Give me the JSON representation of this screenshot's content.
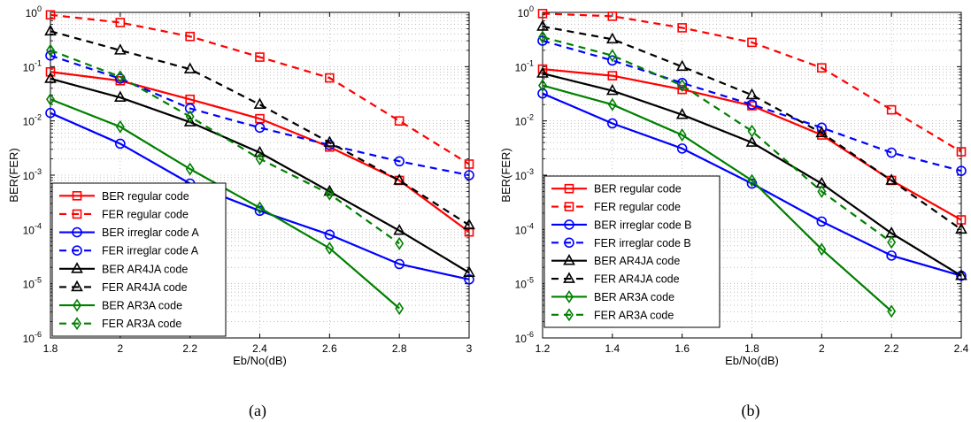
{
  "chart_data": [
    {
      "type": "line",
      "panel_label": "(a)",
      "xlabel": "Eb/No(dB)",
      "ylabel": "BER(FER)",
      "log_y": true,
      "xlim": [
        1.8,
        3.0
      ],
      "ylim": [
        1e-06,
        1
      ],
      "x_ticks": [
        1.8,
        2.0,
        2.2,
        2.4,
        2.6,
        2.8,
        3.0
      ],
      "x_tick_labels": [
        "1.8",
        "2",
        "2.2",
        "2.4",
        "2.6",
        "2.8",
        "3"
      ],
      "y_ticks": [
        {
          "exp": "-6",
          "value": 1e-06
        },
        {
          "exp": "-5",
          "value": 1e-05
        },
        {
          "exp": "-4",
          "value": 0.0001
        },
        {
          "exp": "-3",
          "value": 0.001
        },
        {
          "exp": "-2",
          "value": 0.01
        },
        {
          "exp": "-1",
          "value": 0.1
        },
        {
          "exp": "0",
          "value": 1
        }
      ],
      "y_tick_base": "10",
      "grid": true,
      "legend_placement": "bottom-left",
      "series": [
        {
          "name": "BER regular code",
          "color": "#ff0000",
          "dash": "solid",
          "marker": "square",
          "x": [
            1.8,
            2.0,
            2.2,
            2.4,
            2.6,
            2.8,
            3.0
          ],
          "y": [
            0.08,
            0.055,
            0.025,
            0.011,
            0.0033,
            0.0008,
            9e-05
          ]
        },
        {
          "name": "FER regular code",
          "color": "#ff0000",
          "dash": "dashed",
          "marker": "square",
          "x": [
            1.8,
            2.0,
            2.2,
            2.4,
            2.6,
            2.8,
            3.0
          ],
          "y": [
            0.9,
            0.65,
            0.36,
            0.15,
            0.062,
            0.01,
            0.0016
          ]
        },
        {
          "name": "BER irreglar code A",
          "color": "#0000ff",
          "dash": "solid",
          "marker": "circle",
          "x": [
            1.8,
            2.0,
            2.2,
            2.4,
            2.6,
            2.8,
            3.0
          ],
          "y": [
            0.014,
            0.0038,
            0.0007,
            0.00022,
            8e-05,
            2.3e-05,
            1.2e-05
          ]
        },
        {
          "name": "FER irreglar code A",
          "color": "#0000ff",
          "dash": "dashed",
          "marker": "circle",
          "x": [
            1.8,
            2.0,
            2.2,
            2.4,
            2.6,
            2.8,
            3.0
          ],
          "y": [
            0.16,
            0.06,
            0.017,
            0.0075,
            0.0036,
            0.0018,
            0.001
          ]
        },
        {
          "name": "BER AR4JA code",
          "color": "#000000",
          "dash": "solid",
          "marker": "triangle",
          "x": [
            1.8,
            2.0,
            2.2,
            2.4,
            2.6,
            2.8,
            3.0
          ],
          "y": [
            0.06,
            0.027,
            0.0095,
            0.0026,
            0.0005,
            9.5e-05,
            1.6e-05
          ]
        },
        {
          "name": "FER AR4JA code",
          "color": "#000000",
          "dash": "dashed",
          "marker": "triangle",
          "x": [
            1.8,
            2.0,
            2.2,
            2.4,
            2.6,
            2.8,
            3.0
          ],
          "y": [
            0.45,
            0.2,
            0.09,
            0.02,
            0.004,
            0.0008,
            0.00012
          ]
        },
        {
          "name": "BER AR3A code",
          "color": "#008000",
          "dash": "solid",
          "marker": "diamond",
          "x": [
            1.8,
            2.0,
            2.2,
            2.4,
            2.6,
            2.8
          ],
          "y": [
            0.025,
            0.0078,
            0.0013,
            0.00025,
            4.5e-05,
            3.5e-06
          ]
        },
        {
          "name": "FER AR3A code",
          "color": "#008000",
          "dash": "dashed",
          "marker": "diamond",
          "x": [
            1.8,
            2.0,
            2.2,
            2.4,
            2.6,
            2.8
          ],
          "y": [
            0.2,
            0.065,
            0.012,
            0.002,
            0.00045,
            5.5e-05
          ]
        }
      ]
    },
    {
      "type": "line",
      "panel_label": "(b)",
      "xlabel": "Eb/No(dB)",
      "ylabel": "BER(FER)",
      "log_y": true,
      "xlim": [
        1.2,
        2.4
      ],
      "ylim": [
        1e-06,
        1
      ],
      "x_ticks": [
        1.2,
        1.4,
        1.6,
        1.8,
        2.0,
        2.2,
        2.4
      ],
      "x_tick_labels": [
        "1.2",
        "1.4",
        "1.6",
        "1.8",
        "2",
        "2.2",
        "2.4"
      ],
      "y_ticks": [
        {
          "exp": "-6",
          "value": 1e-06
        },
        {
          "exp": "-5",
          "value": 1e-05
        },
        {
          "exp": "-4",
          "value": 0.0001
        },
        {
          "exp": "-3",
          "value": 0.001
        },
        {
          "exp": "-2",
          "value": 0.01
        },
        {
          "exp": "-1",
          "value": 0.1
        },
        {
          "exp": "0",
          "value": 1
        }
      ],
      "y_tick_base": "10",
      "grid": true,
      "legend_placement": "bottom-left",
      "series": [
        {
          "name": "BER regular code",
          "color": "#ff0000",
          "dash": "solid",
          "marker": "square",
          "x": [
            1.2,
            1.4,
            1.6,
            1.8,
            2.0,
            2.2,
            2.4
          ],
          "y": [
            0.09,
            0.068,
            0.038,
            0.019,
            0.0055,
            0.0008,
            0.00015
          ]
        },
        {
          "name": "FER regular code",
          "color": "#ff0000",
          "dash": "dashed",
          "marker": "square",
          "x": [
            1.2,
            1.4,
            1.6,
            1.8,
            2.0,
            2.2,
            2.4
          ],
          "y": [
            0.95,
            0.85,
            0.52,
            0.28,
            0.095,
            0.016,
            0.0027
          ]
        },
        {
          "name": "BER irreglar code B",
          "color": "#0000ff",
          "dash": "solid",
          "marker": "circle",
          "x": [
            1.2,
            1.4,
            1.6,
            1.8,
            2.0,
            2.2,
            2.4
          ],
          "y": [
            0.032,
            0.009,
            0.0031,
            0.0007,
            0.00014,
            3.3e-05,
            1.4e-05
          ]
        },
        {
          "name": "FER irreglar code B",
          "color": "#0000ff",
          "dash": "dashed",
          "marker": "circle",
          "x": [
            1.2,
            1.4,
            1.6,
            1.8,
            2.0,
            2.2,
            2.4
          ],
          "y": [
            0.3,
            0.13,
            0.05,
            0.02,
            0.0075,
            0.0026,
            0.0012
          ]
        },
        {
          "name": "BER AR4JA code",
          "color": "#000000",
          "dash": "solid",
          "marker": "triangle",
          "x": [
            1.2,
            1.4,
            1.6,
            1.8,
            2.0,
            2.2,
            2.4
          ],
          "y": [
            0.075,
            0.036,
            0.013,
            0.004,
            0.0007,
            8.5e-05,
            1.4e-05
          ]
        },
        {
          "name": "FER AR4JA code",
          "color": "#000000",
          "dash": "dashed",
          "marker": "triangle",
          "x": [
            1.2,
            1.4,
            1.6,
            1.8,
            2.0,
            2.2,
            2.4
          ],
          "y": [
            0.55,
            0.32,
            0.1,
            0.03,
            0.006,
            0.0008,
            0.0001
          ]
        },
        {
          "name": "BER AR3A code",
          "color": "#008000",
          "dash": "solid",
          "marker": "diamond",
          "x": [
            1.2,
            1.4,
            1.6,
            1.8,
            2.0,
            2.2
          ],
          "y": [
            0.045,
            0.02,
            0.0055,
            0.0008,
            4.3e-05,
            3.1e-06
          ]
        },
        {
          "name": "FER AR3A code",
          "color": "#008000",
          "dash": "dashed",
          "marker": "diamond",
          "x": [
            1.2,
            1.4,
            1.6,
            1.8,
            2.0,
            2.2
          ],
          "y": [
            0.35,
            0.16,
            0.045,
            0.0065,
            0.0005,
            5.8e-05
          ]
        }
      ]
    }
  ]
}
